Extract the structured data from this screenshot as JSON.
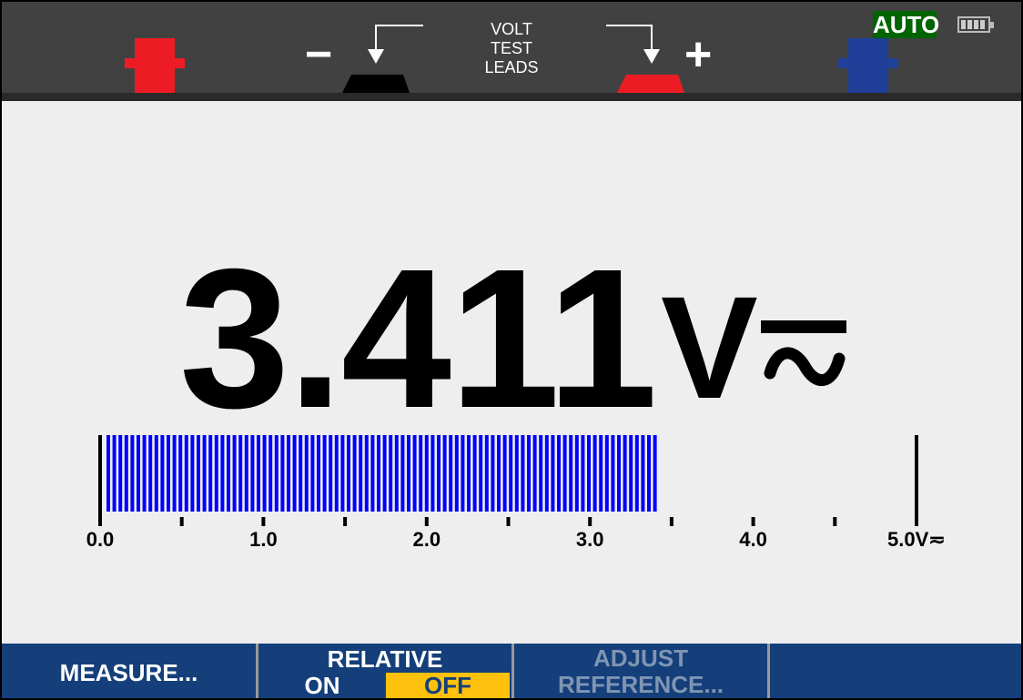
{
  "header": {
    "leads_label": [
      "VOLT",
      "TEST",
      "LEADS"
    ],
    "minus_symbol": "−",
    "plus_symbol": "+",
    "range_mode": "AUTO",
    "battery_icon": "battery-full-icon",
    "colors": {
      "red_jack": "#ed1c24",
      "blue_jack": "#1f3f99",
      "black_jack": "#000000",
      "auto_badge": "#006400"
    }
  },
  "reading": {
    "value": "3.411",
    "unit": "V",
    "mode_icon": "ac-dc-icon"
  },
  "bargraph": {
    "value": 3.411,
    "min": 0,
    "max": 5,
    "tick_step": 0.5,
    "labels": [
      "0.0",
      "1.0",
      "2.0",
      "3.0",
      "4.0",
      "5.0V≂"
    ],
    "label_values": [
      0,
      1,
      2,
      3,
      4,
      5
    ],
    "bar_color": "#0000ff"
  },
  "footer": {
    "measure": "MEASURE...",
    "relative": "RELATIVE",
    "relative_on": "ON",
    "relative_off": "OFF",
    "adjust_line1": "ADJUST",
    "adjust_line2": "REFERENCE...",
    "colors": {
      "background": "#143f7a",
      "selected": "#fdc10e",
      "disabled_text": "#7f95b2"
    }
  }
}
